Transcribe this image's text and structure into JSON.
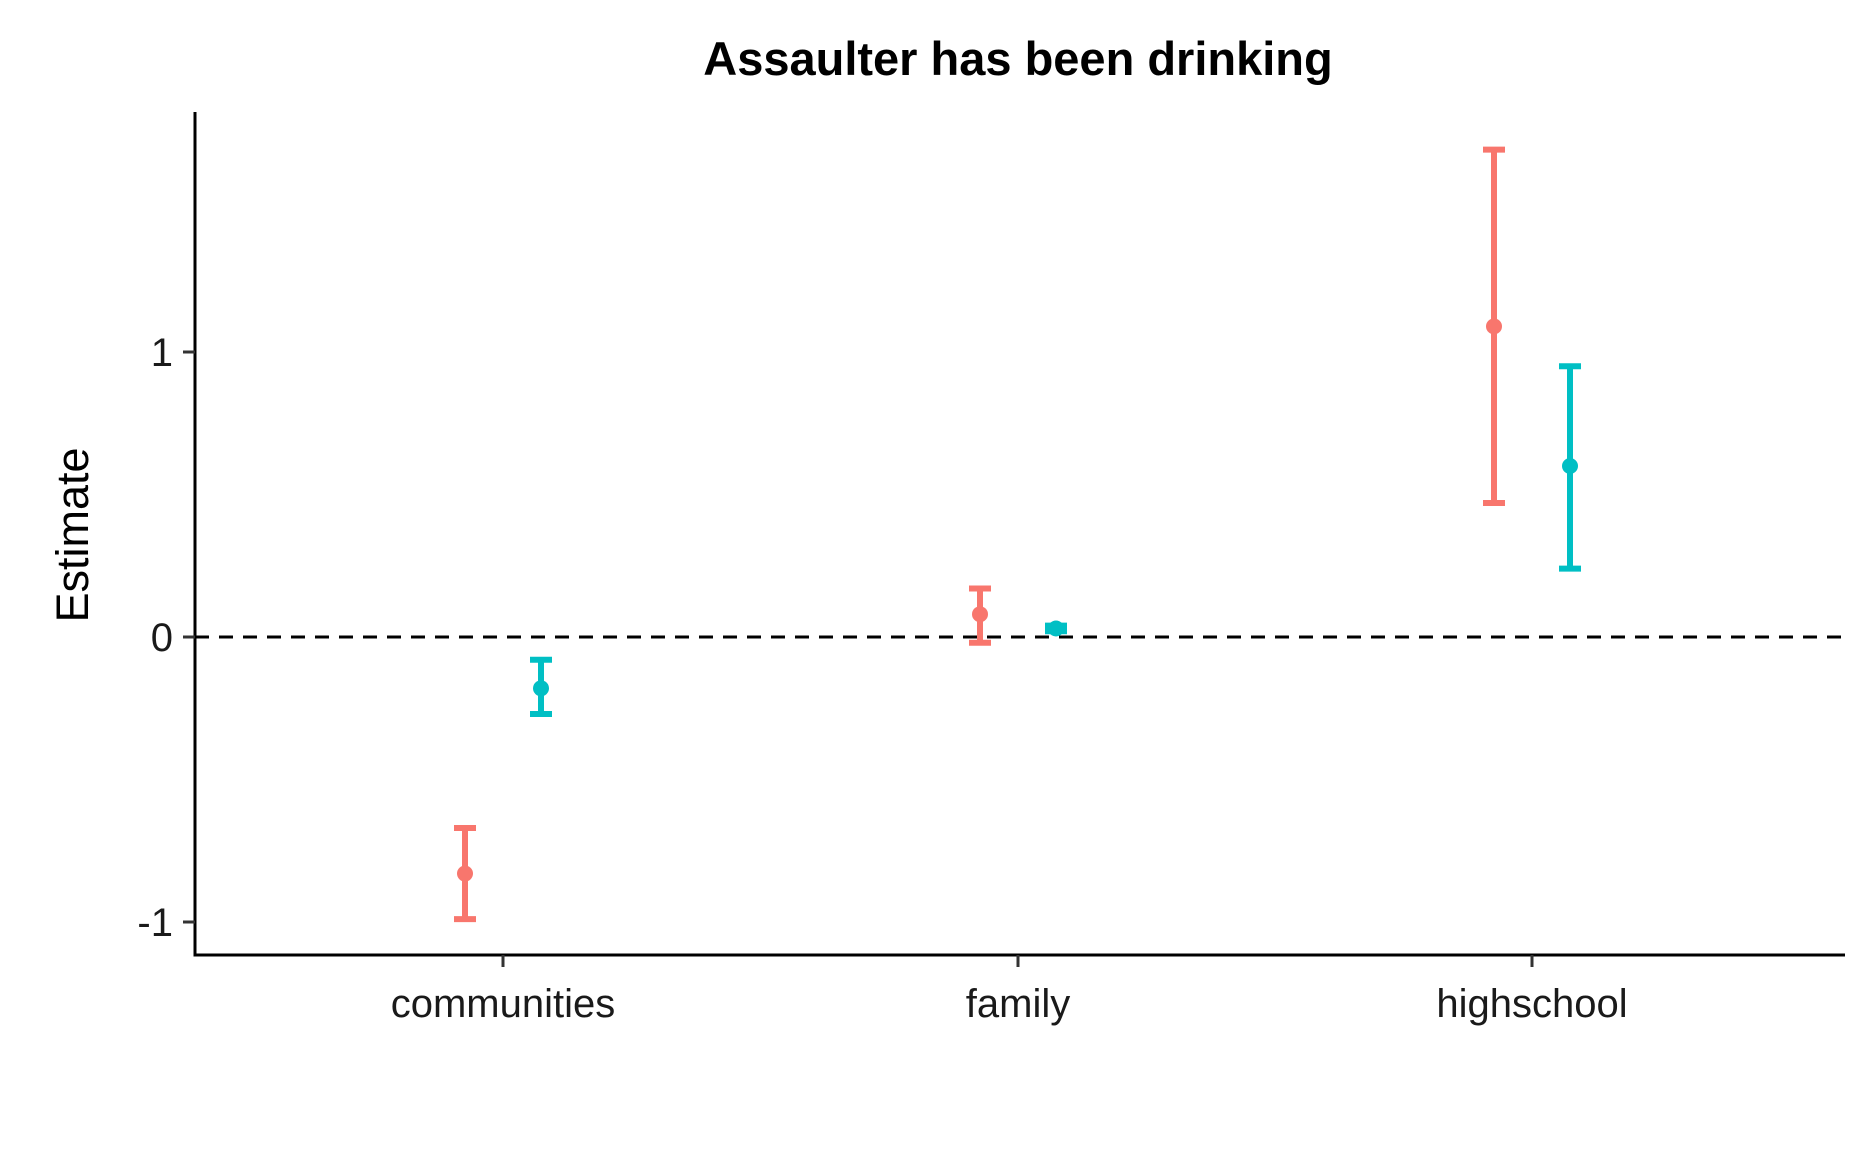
{
  "chart_data": {
    "type": "errorbar",
    "title": "Assaulter has been drinking",
    "xlabel": "",
    "ylabel": "Estimate",
    "categories": [
      "communities",
      "family",
      "highschool"
    ],
    "y_ticks": [
      -1,
      0,
      1
    ],
    "y_tick_labels": [
      "-1",
      "0",
      "1"
    ],
    "ylim": [
      -1.12,
      1.85
    ],
    "reference_line": {
      "y": 0,
      "style": "dashed"
    },
    "grid": false,
    "legend": "none",
    "series": [
      {
        "color": "#F8766D",
        "points": [
          {
            "category": "communities",
            "estimate": -0.83,
            "lower": -0.99,
            "upper": -0.67
          },
          {
            "category": "family",
            "estimate": 0.08,
            "lower": -0.02,
            "upper": 0.17
          },
          {
            "category": "highschool",
            "estimate": 1.09,
            "lower": 0.47,
            "upper": 1.71
          }
        ]
      },
      {
        "color": "#00BFC4",
        "points": [
          {
            "category": "communities",
            "estimate": -0.18,
            "lower": -0.27,
            "upper": -0.08
          },
          {
            "category": "family",
            "estimate": 0.03,
            "lower": 0.02,
            "upper": 0.04
          },
          {
            "category": "highschool",
            "estimate": 0.6,
            "lower": 0.24,
            "upper": 0.95
          }
        ]
      }
    ]
  }
}
